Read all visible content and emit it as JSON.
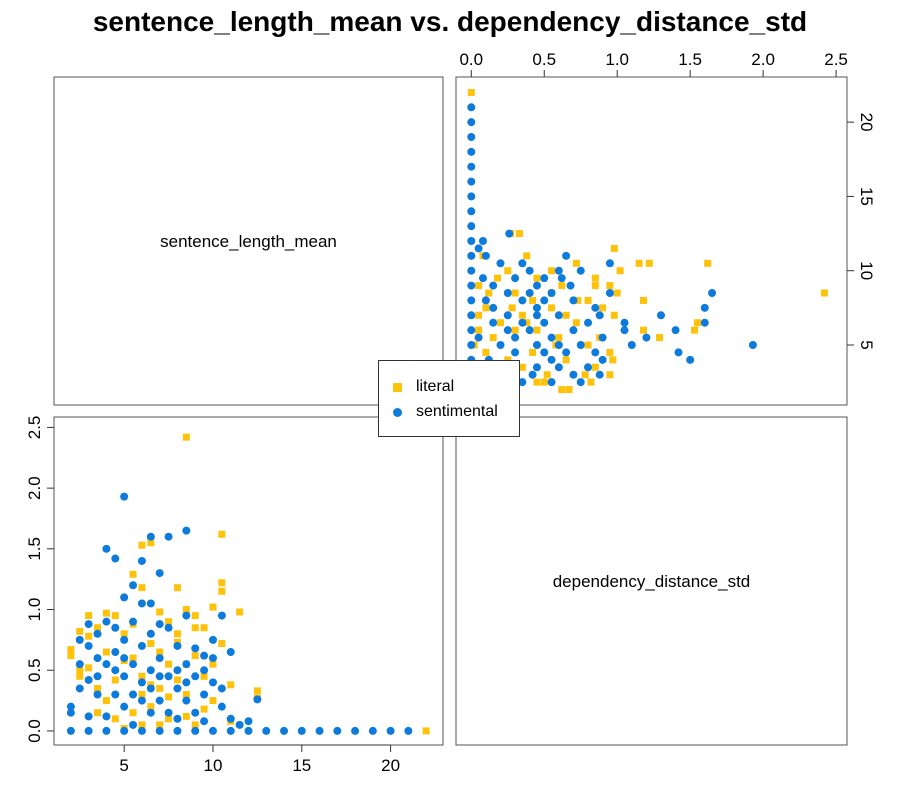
{
  "chart_data": {
    "type": "scatter",
    "title": "sentence_length_mean vs. dependency_distance_std",
    "variables": [
      "sentence_length_mean",
      "dependency_distance_std"
    ],
    "layout": "2x2 pairs plot, diagonal shows variable names",
    "axes": {
      "sentence_length_mean": {
        "range": [
          1.5,
          22.5
        ],
        "ticks": [
          5,
          10,
          15,
          20
        ],
        "tick_labels": [
          "5",
          "10",
          "15",
          "20"
        ]
      },
      "dependency_distance_std": {
        "range": [
          -0.05,
          2.52
        ],
        "ticks": [
          0,
          0.5,
          1,
          1.5,
          2,
          2.5
        ],
        "tick_labels": [
          "0.0",
          "0.5",
          "1.0",
          "1.5",
          "2.0",
          "2.5"
        ]
      }
    },
    "legend": {
      "placement": "center",
      "entries": [
        {
          "label": "literal",
          "marker": "square",
          "color": "#FFC20A"
        },
        {
          "label": "sentimental",
          "marker": "circle",
          "color": "#0C7BDC"
        }
      ]
    },
    "series": [
      {
        "name": "literal",
        "marker": "square",
        "color": "#FFC20A",
        "points": [
          [
            22.0,
            0.0
          ],
          [
            12.5,
            0.33
          ],
          [
            12.5,
            0.27
          ],
          [
            11.5,
            0.98
          ],
          [
            10.5,
            1.62
          ],
          [
            10.5,
            1.22
          ],
          [
            10.5,
            1.15
          ],
          [
            10.0,
            1.02
          ],
          [
            9.5,
            0.85
          ],
          [
            9.0,
            0.95
          ],
          [
            8.5,
            2.42
          ],
          [
            8.5,
            1.0
          ],
          [
            8.0,
            1.18
          ],
          [
            8.0,
            0.73
          ],
          [
            7.5,
            0.55
          ],
          [
            7.0,
            0.98
          ],
          [
            6.5,
            1.55
          ],
          [
            6.0,
            1.53
          ],
          [
            6.0,
            1.18
          ],
          [
            5.5,
            1.29
          ],
          [
            5.0,
            0.8
          ],
          [
            4.5,
            0.95
          ],
          [
            4.0,
            0.97
          ],
          [
            3.5,
            0.85
          ],
          [
            3.0,
            0.95
          ],
          [
            3.0,
            0.52
          ],
          [
            2.5,
            0.5
          ],
          [
            2.0,
            0.67
          ],
          [
            2.0,
            0.62
          ],
          [
            2.5,
            0.45
          ],
          [
            3.5,
            0.35
          ],
          [
            4.5,
            0.42
          ],
          [
            5.5,
            0.6
          ],
          [
            6.0,
            0.45
          ],
          [
            6.5,
            0.38
          ],
          [
            7.0,
            0.65
          ],
          [
            7.5,
            0.28
          ],
          [
            8.0,
            0.42
          ],
          [
            8.5,
            0.3
          ],
          [
            9.0,
            0.62
          ],
          [
            9.5,
            0.45
          ],
          [
            10.0,
            0.55
          ],
          [
            11.0,
            0.38
          ],
          [
            10.5,
            0.72
          ],
          [
            9.5,
            0.18
          ],
          [
            8.5,
            0.12
          ],
          [
            7.5,
            0.1
          ],
          [
            6.5,
            0.2
          ],
          [
            5.5,
            0.15
          ],
          [
            4.5,
            0.1
          ],
          [
            3.5,
            0.15
          ],
          [
            7.0,
            0.05
          ],
          [
            6.0,
            0.3
          ],
          [
            5.0,
            0.58
          ],
          [
            4.0,
            0.65
          ],
          [
            8.0,
            0.8
          ],
          [
            9.0,
            0.85
          ],
          [
            7.0,
            0.35
          ],
          [
            6.5,
            0.72
          ],
          [
            3.0,
            0.78
          ],
          [
            5.5,
            0.88
          ],
          [
            8.5,
            0.55
          ],
          [
            10.0,
            0.25
          ],
          [
            9.0,
            0.05
          ],
          [
            6.0,
            0.05
          ],
          [
            5.0,
            0.02
          ],
          [
            11.0,
            0.08
          ],
          [
            2.5,
            0.82
          ],
          [
            4.0,
            0.25
          ],
          [
            7.5,
            0.9
          ]
        ]
      },
      {
        "name": "sentimental",
        "marker": "circle",
        "color": "#0C7BDC",
        "points": [
          [
            21.0,
            0.0
          ],
          [
            20.0,
            0.0
          ],
          [
            19.0,
            0.0
          ],
          [
            18.0,
            0.0
          ],
          [
            17.0,
            0.0
          ],
          [
            16.0,
            0.0
          ],
          [
            15.0,
            0.0
          ],
          [
            14.0,
            0.0
          ],
          [
            13.0,
            0.0
          ],
          [
            12.0,
            0.0
          ],
          [
            11.0,
            0.0
          ],
          [
            10.0,
            0.0
          ],
          [
            9.0,
            0.0
          ],
          [
            8.0,
            0.0
          ],
          [
            7.0,
            0.0
          ],
          [
            6.0,
            0.0
          ],
          [
            5.0,
            0.0
          ],
          [
            4.0,
            0.0
          ],
          [
            3.0,
            0.0
          ],
          [
            2.0,
            0.0
          ],
          [
            12.5,
            0.26
          ],
          [
            12.0,
            0.08
          ],
          [
            11.5,
            0.05
          ],
          [
            11.0,
            0.1
          ],
          [
            11.0,
            0.65
          ],
          [
            10.5,
            0.95
          ],
          [
            10.5,
            0.2
          ],
          [
            10.0,
            0.75
          ],
          [
            10.0,
            0.6
          ],
          [
            10.0,
            0.4
          ],
          [
            9.5,
            0.5
          ],
          [
            9.5,
            0.3
          ],
          [
            9.5,
            0.08
          ],
          [
            9.0,
            0.68
          ],
          [
            9.0,
            0.45
          ],
          [
            8.5,
            1.65
          ],
          [
            8.5,
            0.95
          ],
          [
            8.5,
            0.55
          ],
          [
            8.5,
            0.25
          ],
          [
            8.0,
            0.7
          ],
          [
            8.0,
            0.35
          ],
          [
            8.0,
            0.1
          ],
          [
            7.5,
            1.6
          ],
          [
            7.5,
            0.85
          ],
          [
            7.5,
            0.45
          ],
          [
            7.0,
            1.3
          ],
          [
            7.0,
            0.88
          ],
          [
            7.0,
            0.6
          ],
          [
            7.0,
            0.25
          ],
          [
            6.5,
            1.6
          ],
          [
            6.5,
            1.05
          ],
          [
            6.5,
            0.5
          ],
          [
            6.5,
            0.15
          ],
          [
            6.0,
            1.4
          ],
          [
            6.0,
            1.05
          ],
          [
            6.0,
            0.7
          ],
          [
            6.0,
            0.4
          ],
          [
            5.5,
            1.2
          ],
          [
            5.5,
            0.9
          ],
          [
            5.5,
            0.55
          ],
          [
            5.5,
            0.3
          ],
          [
            5.0,
            1.93
          ],
          [
            5.0,
            1.1
          ],
          [
            5.0,
            0.75
          ],
          [
            5.0,
            0.45
          ],
          [
            5.0,
            0.2
          ],
          [
            4.5,
            1.42
          ],
          [
            4.5,
            0.85
          ],
          [
            4.5,
            0.5
          ],
          [
            4.5,
            0.3
          ],
          [
            4.0,
            1.5
          ],
          [
            4.0,
            0.9
          ],
          [
            4.0,
            0.55
          ],
          [
            4.0,
            0.12
          ],
          [
            3.5,
            0.8
          ],
          [
            3.5,
            0.6
          ],
          [
            3.5,
            0.3
          ],
          [
            3.0,
            0.88
          ],
          [
            3.0,
            0.7
          ],
          [
            3.0,
            0.42
          ],
          [
            3.0,
            0.12
          ],
          [
            2.5,
            0.75
          ],
          [
            2.5,
            0.55
          ],
          [
            2.5,
            0.35
          ],
          [
            2.0,
            0.2
          ],
          [
            2.0,
            0.15
          ],
          [
            6.5,
            0.35
          ],
          [
            7.5,
            0.15
          ],
          [
            8.0,
            0.5
          ],
          [
            9.0,
            0.15
          ],
          [
            5.5,
            0.05
          ],
          [
            6.0,
            0.25
          ],
          [
            4.5,
            0.65
          ],
          [
            3.5,
            0.45
          ],
          [
            7.0,
            0.45
          ],
          [
            8.5,
            0.4
          ],
          [
            9.5,
            0.62
          ],
          [
            10.5,
            0.35
          ],
          [
            6.5,
            0.8
          ],
          [
            5.0,
            0.6
          ]
        ]
      }
    ]
  }
}
